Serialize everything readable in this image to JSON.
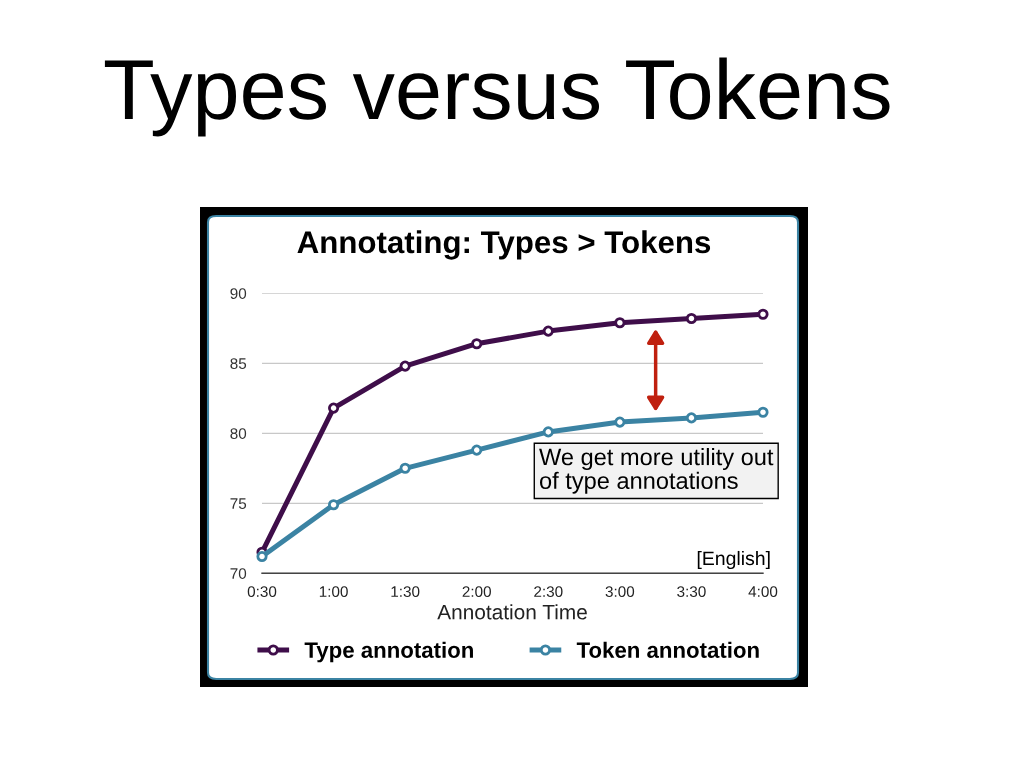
{
  "chart_data": {
    "type": "line",
    "title": "Types versus Tokens",
    "subtitle": "Annotating: Types > Tokens",
    "xlabel": "Annotation Time",
    "categories": [
      "0:30",
      "1:00",
      "1:30",
      "2:00",
      "2:30",
      "3:00",
      "3:30",
      "4:00"
    ],
    "series": [
      {
        "name": "Type annotation",
        "color": "#3f0e4a",
        "values": [
          71.5,
          81.8,
          84.8,
          86.4,
          87.3,
          87.9,
          88.2,
          88.5
        ]
      },
      {
        "name": "Token annotation",
        "color": "#3b83a3",
        "values": [
          71.2,
          74.9,
          77.5,
          78.8,
          80.1,
          80.8,
          81.1,
          81.5
        ]
      }
    ],
    "ylim": [
      70,
      90
    ],
    "yticks": [
      70,
      75,
      80,
      85,
      90
    ],
    "grid": "y",
    "legend": "bottom",
    "marker": "circle",
    "line_style": "solid",
    "annotations": [
      "We get more utility out\nof type annotations",
      "[English]"
    ]
  }
}
